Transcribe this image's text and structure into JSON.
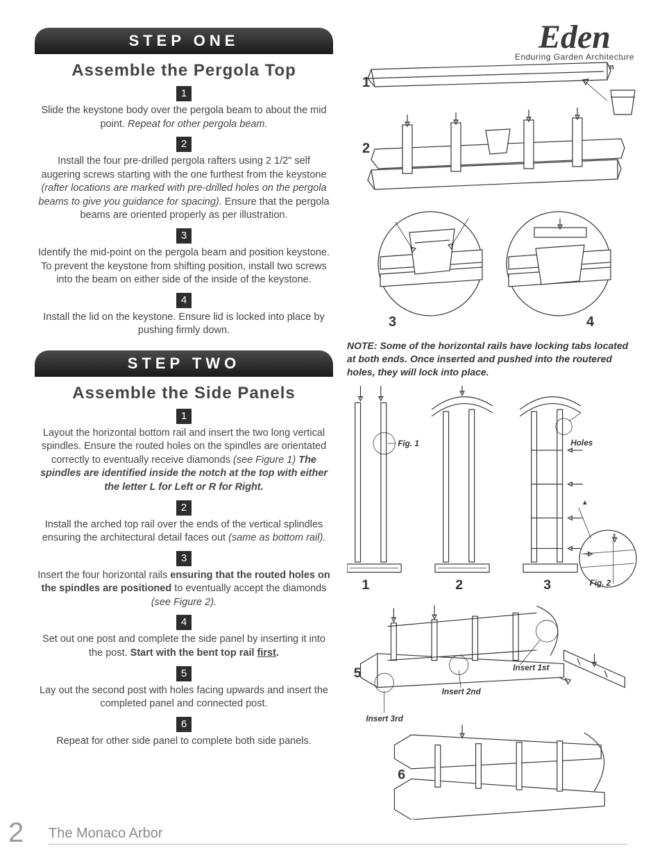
{
  "brand": {
    "name": "Eden",
    "tagline": "Enduring Garden Architecture",
    "url": "www.edenarbors.com"
  },
  "step_one": {
    "banner": "STEP ONE",
    "title": "Assemble the Pergola Top",
    "items": [
      {
        "n": "1",
        "html": "Slide the keystone body over the pergola beam to about the mid point. <em>Repeat for other pergola beam.</em>"
      },
      {
        "n": "2",
        "html": "Install the four pre-drilled pergola rafters using 2 1/2\" self augering screws starting with the one furthest from the keystone <em>(rafter locations are marked with pre-drilled holes on the pergola beams to give you guidance for spacing).</em> Ensure that the pergola beams are oriented properly as per illustration."
      },
      {
        "n": "3",
        "html": "Identify the mid-point on the pergola beam and position keystone. To prevent the keystone from shifting position, install two screws into the beam on either side of the inside of the keystone."
      },
      {
        "n": "4",
        "html": "Install the lid on the keystone. Ensure lid is locked into place by pushing firmly down."
      }
    ]
  },
  "step_two": {
    "banner": "STEP TWO",
    "title": "Assemble the Side Panels",
    "items": [
      {
        "n": "1",
        "html": "Layout the horizontal bottom rail and insert the two long vertical spindles. Ensure the routed holes on the spindles are orientated correctly to eventually receive diamonds <em>(see Figure 1)</em> <strong><em>The spindles are identified inside the notch at the top with either the letter L for Left or R for Right.</em></strong>"
      },
      {
        "n": "2",
        "html": "Install the arched top rail over the ends of the vertical splindles ensuring the architectural detail faces out <em>(same as bottom rail).</em>"
      },
      {
        "n": "3",
        "html": "Insert the four horizontal rails <strong>ensuring that the routed holes on the spindles are positioned</strong> to eventually accept the diamonds <em>(see Figure 2).</em>"
      },
      {
        "n": "4",
        "html": "Set out one post and complete the side panel by inserting it into the post. <strong>Start with the bent top rail <u>first</u>.</strong>"
      },
      {
        "n": "5",
        "html": "Lay out the second post with holes facing upwards and insert the completed panel and connected post."
      },
      {
        "n": "6",
        "html": "Repeat for other side panel to complete both side panels."
      }
    ]
  },
  "diagram_labels": {
    "d1": "1",
    "d2": "2",
    "d3": "3",
    "d4": "4",
    "p1": "1",
    "p2": "2",
    "p3": "3",
    "p5": "5",
    "p6": "6",
    "fig1": "Fig. 1",
    "fig2": "Fig. 2",
    "holes": "Holes",
    "insert1": "Insert 1st",
    "insert2": "Insert 2nd",
    "insert3": "Insert 3rd"
  },
  "note": "NOTE:  Some of the horizontal rails have locking tabs located at both ends.  Once inserted and pushed into the routered holes, they will lock into place.",
  "footer": {
    "page": "2",
    "title": "The Monaco Arbor"
  },
  "colors": {
    "text": "#3a3a3a",
    "banner_bg": "#2d2d2d",
    "footer_gray": "#9a9a9a"
  }
}
